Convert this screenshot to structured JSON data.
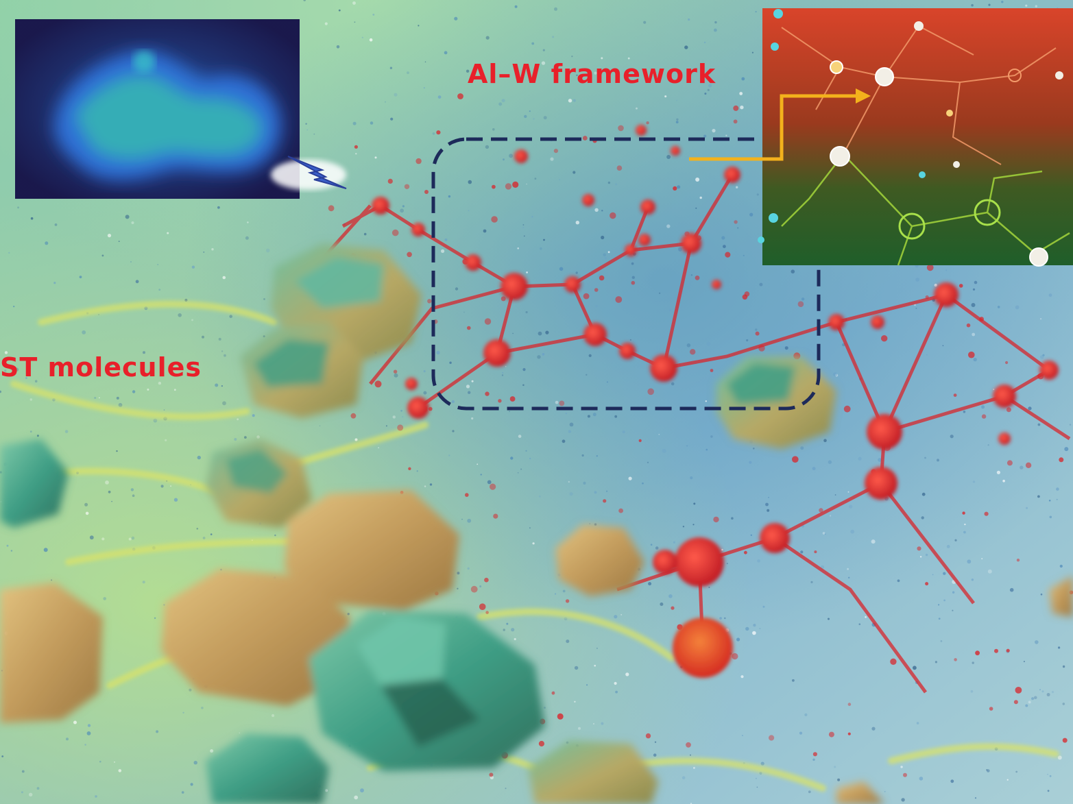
{
  "labels": {
    "framework": "Al–W framework",
    "st_molecules": "ST molecules"
  },
  "colors": {
    "label_red": "#e8202a",
    "dashed_box": "#1d2a5a",
    "arrow": "#f3b21c",
    "framework_node": "#d8262c",
    "crystal_green": "#3f9e85",
    "crystal_amber": "#c8a25a",
    "background_blue": "#7fb1c9",
    "background_green": "#a9d6a8"
  },
  "icons": {
    "fluorescence_inset": "fluorescence-crystal-image",
    "lightning": "lightning-bolt-icon",
    "network_inset": "molecular-network-image"
  }
}
